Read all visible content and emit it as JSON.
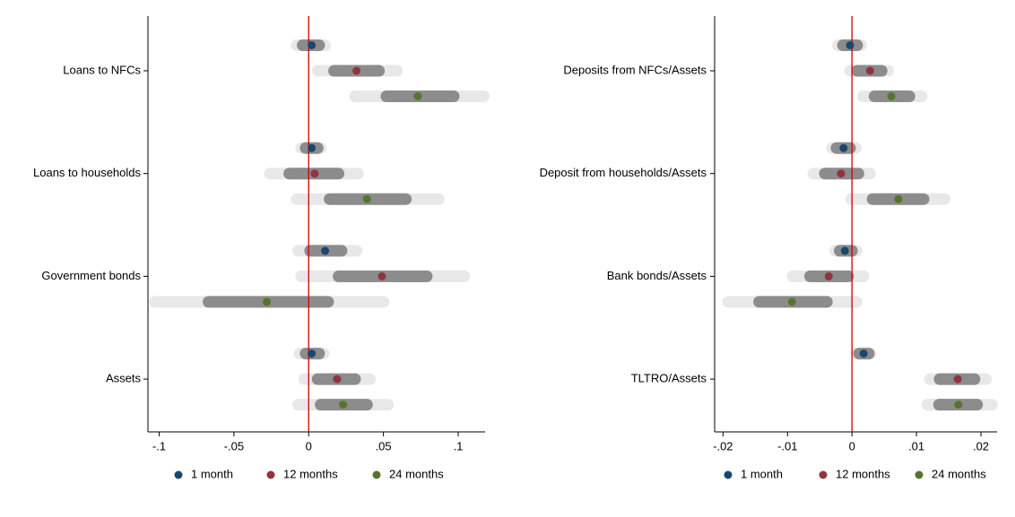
{
  "chart_data": [
    {
      "type": "coefplot",
      "categories": [
        "Loans to NFCs",
        "Loans to households",
        "Government bonds",
        "Assets"
      ],
      "xlim": [
        -0.1075,
        0.118
      ],
      "xticks": [
        {
          "value": -0.1,
          "label": "-.1"
        },
        {
          "value": -0.05,
          "label": "-.05"
        },
        0,
        {
          "value": 0.05,
          "label": ".05"
        },
        {
          "value": 0.1,
          "label": ".1"
        }
      ],
      "xline": 0,
      "xline_color": "#cc0000",
      "outer_color": "#e8e8e8",
      "inner_color": "#8c8c8c",
      "series": [
        {
          "name": "1 month",
          "color": "#1a476f",
          "values": [
            0.002,
            0.002,
            0.011,
            0.002
          ],
          "outer_interval": [
            [
              -0.008,
              0.011
            ],
            [
              -0.005,
              0.008
            ],
            [
              -0.007,
              0.032
            ],
            [
              -0.006,
              0.01
            ]
          ],
          "inner_interval": [
            [
              -0.004,
              0.007
            ],
            [
              -0.002,
              0.006
            ],
            [
              0.001,
              0.022
            ],
            [
              -0.002,
              0.007
            ]
          ]
        },
        {
          "name": "12 months",
          "color": "#90353b",
          "values": [
            0.032,
            0.004,
            0.049,
            0.019
          ],
          "outer_interval": [
            [
              0.006,
              0.059
            ],
            [
              -0.026,
              0.033
            ],
            [
              -0.005,
              0.104
            ],
            [
              -0.003,
              0.041
            ]
          ],
          "inner_interval": [
            [
              0.017,
              0.047
            ],
            [
              -0.013,
              0.02
            ],
            [
              0.02,
              0.079
            ],
            [
              0.006,
              0.031
            ]
          ]
        },
        {
          "name": "24 months",
          "color": "#55752f",
          "values": [
            0.073,
            0.039,
            -0.028,
            0.023
          ],
          "outer_interval": [
            [
              0.031,
              0.117
            ],
            [
              -0.008,
              0.087
            ],
            [
              -0.103,
              0.05
            ],
            [
              -0.007,
              0.053
            ]
          ],
          "inner_interval": [
            [
              0.052,
              0.097
            ],
            [
              0.014,
              0.065
            ],
            [
              -0.067,
              0.013
            ],
            [
              0.008,
              0.039
            ]
          ]
        }
      ]
    },
    {
      "type": "coefplot",
      "categories": [
        "Deposits from NFCs/Assets",
        "Deposit from households/Assets",
        "Bank bonds/Assets",
        "TLTRO/Assets"
      ],
      "xlim": [
        -0.0213,
        0.0225
      ],
      "xticks": [
        {
          "value": -0.02,
          "label": "-.02"
        },
        {
          "value": -0.01,
          "label": "-.01"
        },
        0,
        {
          "value": 0.01,
          "label": ".01"
        },
        {
          "value": 0.02,
          "label": ".02"
        }
      ],
      "xline": 0,
      "xline_color": "#cc0000",
      "outer_color": "#e8e8e8",
      "inner_color": "#8c8c8c",
      "series": [
        {
          "name": "1 month",
          "color": "#1a476f",
          "values": [
            -0.0003,
            -0.0013,
            -0.0011,
            0.0018
          ],
          "outer_interval": [
            [
              -0.0022,
              0.0014
            ],
            [
              -0.0031,
              0.0006
            ],
            [
              -0.0026,
              0.0007
            ],
            [
              0.0007,
              0.0029
            ]
          ],
          "inner_interval": [
            [
              -0.0014,
              0.0008
            ],
            [
              -0.0024,
              -0.0003
            ],
            [
              -0.0019,
              0
            ],
            [
              0.0011,
              0.0026
            ]
          ]
        },
        {
          "name": "12 months",
          "color": "#90353b",
          "values": [
            0.0028,
            -0.0017,
            -0.0036,
            0.0164
          ],
          "outer_interval": [
            [
              -0.0003,
              0.0056
            ],
            [
              -0.006,
              0.0028
            ],
            [
              -0.0092,
              0.0018
            ],
            [
              0.0121,
              0.0208
            ]
          ],
          "inner_interval": [
            [
              0.0008,
              0.0046
            ],
            [
              -0.0042,
              0.001
            ],
            [
              -0.0065,
              -0.0006
            ],
            [
              0.0136,
              0.019
            ]
          ]
        },
        {
          "name": "24 months",
          "color": "#55752f",
          "values": [
            0.0061,
            0.0072,
            -0.0093,
            0.0165
          ],
          "outer_interval": [
            [
              0.0017,
              0.0108
            ],
            [
              -0.0001,
              0.0144
            ],
            [
              -0.0192,
              0.0007
            ],
            [
              0.0117,
              0.0217
            ]
          ],
          "inner_interval": [
            [
              0.0035,
              0.0089
            ],
            [
              0.0032,
              0.0111
            ],
            [
              -0.0144,
              -0.0039
            ],
            [
              0.0135,
              0.0194
            ]
          ]
        }
      ]
    }
  ]
}
